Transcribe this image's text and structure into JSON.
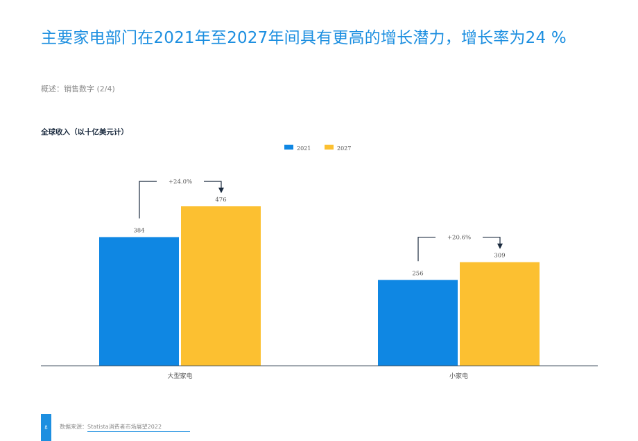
{
  "title": "主要家电部门在2021年至2027年间具有更高的增长潜力，增长率为24 %",
  "subtitle": "概述：销售数字 (2/4)",
  "chart_heading": "全球收入（以十亿美元计）",
  "colors": {
    "accent": "#1d8fe0",
    "series_2021": "#0f87e3",
    "series_2027": "#fcc031",
    "annotation": "#1a2a3e"
  },
  "chart_data": {
    "type": "bar",
    "title": "全球收入（以十亿美元计）",
    "categories": [
      "大型家电",
      "小家电"
    ],
    "series": [
      {
        "name": "2021",
        "values": [
          384,
          256
        ]
      },
      {
        "name": "2027",
        "values": [
          476,
          309
        ]
      }
    ],
    "growth_labels": [
      "+24.0%",
      "+20.6%"
    ],
    "ylim": [
      0,
      476
    ],
    "grid": false,
    "legend": "top-center"
  },
  "footer": {
    "page_number": "8",
    "source_prefix": "数据来源：",
    "source_link": "Statista消费者市场展望2022"
  }
}
